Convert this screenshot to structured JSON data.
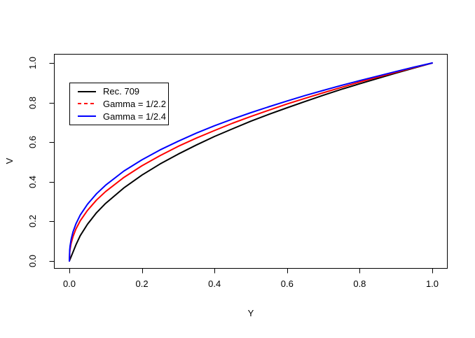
{
  "figure": {
    "background_color": "#ffffff",
    "axis_color": "#000000",
    "text_color": "#000000"
  },
  "chart_data": {
    "type": "line",
    "title": "",
    "xlabel": "Y",
    "ylabel": "V",
    "xlim": [
      0.0,
      1.0
    ],
    "ylim": [
      0.0,
      1.0
    ],
    "grid": false,
    "legend_position": "top-left",
    "x_tick_values": [
      0.0,
      0.2,
      0.4,
      0.6,
      0.8,
      1.0
    ],
    "x_tick_labels": [
      "0.0",
      "0.2",
      "0.4",
      "0.6",
      "0.8",
      "1.0"
    ],
    "y_tick_values": [
      0.0,
      0.2,
      0.4,
      0.6,
      0.8,
      1.0
    ],
    "y_tick_labels": [
      "0.0",
      "0.2",
      "0.4",
      "0.6",
      "0.8",
      "1.0"
    ],
    "x": [
      0,
      0.001,
      0.002,
      0.005,
      0.01,
      0.018,
      0.03,
      0.05,
      0.075,
      0.1,
      0.15,
      0.2,
      0.25,
      0.3,
      0.35,
      0.4,
      0.45,
      0.5,
      0.55,
      0.6,
      0.65,
      0.7,
      0.75,
      0.8,
      0.85,
      0.9,
      0.95,
      1.0
    ],
    "series": [
      {
        "name": "Rec. 709",
        "color": "#000000",
        "line_style": "solid",
        "legend_line_style": "solid",
        "values": [
          0,
          0.0045,
          0.009,
          0.0225,
          0.045,
          0.081,
          0.128,
          0.186,
          0.244,
          0.291,
          0.369,
          0.434,
          0.49,
          0.54,
          0.586,
          0.629,
          0.668,
          0.706,
          0.741,
          0.774,
          0.806,
          0.837,
          0.867,
          0.895,
          0.922,
          0.949,
          0.975,
          1.0
        ]
      },
      {
        "name": "Gamma = 1/2.2",
        "color": "#ff0000",
        "line_style": "solid",
        "legend_line_style": "dashed",
        "values": [
          0,
          0.043,
          0.059,
          0.09,
          0.123,
          0.161,
          0.203,
          0.256,
          0.308,
          0.351,
          0.422,
          0.481,
          0.532,
          0.579,
          0.621,
          0.659,
          0.696,
          0.73,
          0.762,
          0.793,
          0.822,
          0.85,
          0.877,
          0.904,
          0.929,
          0.953,
          0.977,
          1.0
        ]
      },
      {
        "name": "Gamma = 1/2.4",
        "color": "#0000ff",
        "line_style": "solid",
        "legend_line_style": "solid",
        "values": [
          0,
          0.056,
          0.075,
          0.11,
          0.147,
          0.187,
          0.232,
          0.287,
          0.34,
          0.383,
          0.454,
          0.511,
          0.561,
          0.605,
          0.646,
          0.683,
          0.717,
          0.749,
          0.779,
          0.808,
          0.836,
          0.862,
          0.887,
          0.911,
          0.934,
          0.957,
          0.979,
          1.0
        ]
      }
    ]
  }
}
